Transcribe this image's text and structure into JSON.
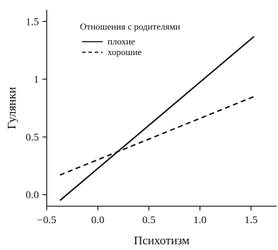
{
  "chart_data": {
    "type": "line",
    "xlabel": "Психотизм",
    "ylabel": "Гулянки",
    "xlim": [
      -0.5,
      1.75
    ],
    "ylim": [
      -0.1,
      1.6
    ],
    "xticks": [
      -0.5,
      0.0,
      0.5,
      1.0,
      1.5
    ],
    "yticks": [
      0.0,
      0.5,
      1.0,
      1.5
    ],
    "xtick_labels": [
      "−0.5",
      "0.0",
      "0.5",
      "1.0",
      "1.5"
    ],
    "ytick_labels": [
      "0.0",
      "0.5",
      "1",
      "1.5"
    ],
    "legend": {
      "title": "Отношения с родителями",
      "placement": "top-left"
    },
    "series": [
      {
        "name": "плохие",
        "style": "solid",
        "color": "#111111",
        "x": [
          -0.37,
          1.53
        ],
        "y": [
          -0.05,
          1.37
        ]
      },
      {
        "name": "хорошие",
        "style": "dashed",
        "color": "#111111",
        "x": [
          -0.37,
          1.53
        ],
        "y": [
          0.17,
          0.85
        ]
      }
    ]
  }
}
